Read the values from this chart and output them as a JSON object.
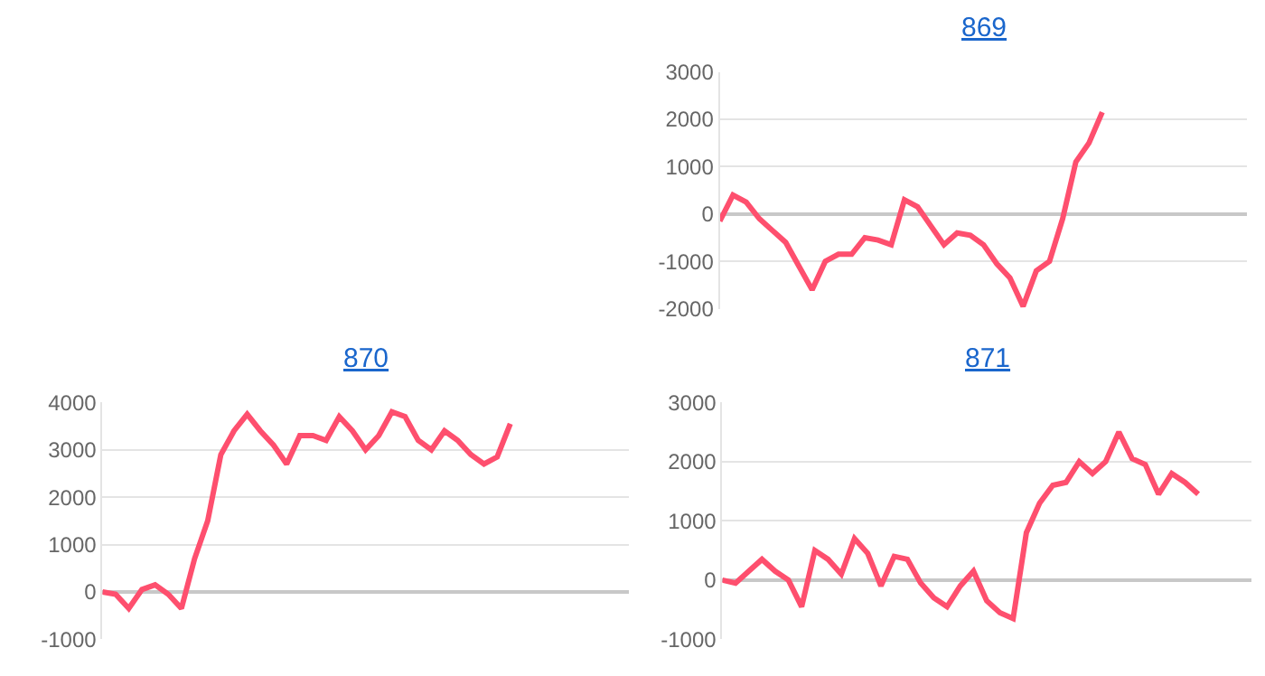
{
  "chart_data": [
    {
      "type": "line",
      "title": "869",
      "categories": [
        null,
        null,
        null,
        null,
        null,
        null,
        null,
        null,
        null,
        null,
        null,
        null,
        null,
        null,
        null,
        null,
        null,
        null,
        null,
        null,
        null,
        null,
        null,
        null,
        null,
        null,
        null,
        null,
        null,
        null,
        null,
        null,
        null,
        null,
        null,
        null,
        null,
        null,
        null,
        null,
        null
      ],
      "series": [
        {
          "color": "#fe4f6e",
          "values": [
            -150,
            400,
            250,
            -100,
            -350,
            -600,
            -1100,
            -1600,
            -1000,
            -850,
            -850,
            -500,
            -550,
            -650,
            300,
            150,
            -250,
            -650,
            -400,
            -450,
            -650,
            -1050,
            -1350,
            -1950,
            -1200,
            -1000,
            -100,
            1100,
            1500,
            2150,
            null,
            null,
            null,
            null,
            null,
            null,
            null,
            null,
            null,
            null,
            null
          ]
        }
      ],
      "ylim": [
        -2000,
        3000
      ],
      "yticks": [
        -2000,
        -1000,
        0,
        1000,
        2000,
        3000
      ],
      "grid": "y",
      "tick_labels": "y"
    },
    {
      "type": "line",
      "title": "870",
      "categories": [
        null,
        null,
        null,
        null,
        null,
        null,
        null,
        null,
        null,
        null,
        null,
        null,
        null,
        null,
        null,
        null,
        null,
        null,
        null,
        null,
        null,
        null,
        null,
        null,
        null,
        null,
        null,
        null,
        null,
        null,
        null,
        null,
        null,
        null,
        null,
        null,
        null,
        null,
        null,
        null,
        null
      ],
      "series": [
        {
          "color": "#fe4f6e",
          "values": [
            0,
            -50,
            -350,
            50,
            150,
            -50,
            -350,
            700,
            1500,
            2900,
            3400,
            3750,
            3400,
            3100,
            2700,
            3300,
            3300,
            3200,
            3700,
            3400,
            3000,
            3300,
            3800,
            3700,
            3200,
            3000,
            3400,
            3200,
            2900,
            2700,
            2850,
            3550,
            null,
            null,
            null,
            null,
            null,
            null,
            null,
            null,
            null
          ]
        }
      ],
      "ylim": [
        -1000,
        4000
      ],
      "yticks": [
        -1000,
        0,
        1000,
        2000,
        3000,
        4000
      ],
      "grid": "y",
      "tick_labels": "y"
    },
    {
      "type": "line",
      "title": "871",
      "categories": [
        null,
        null,
        null,
        null,
        null,
        null,
        null,
        null,
        null,
        null,
        null,
        null,
        null,
        null,
        null,
        null,
        null,
        null,
        null,
        null,
        null,
        null,
        null,
        null,
        null,
        null,
        null,
        null,
        null,
        null,
        null,
        null,
        null,
        null,
        null,
        null,
        null,
        null,
        null,
        null,
        null
      ],
      "series": [
        {
          "color": "#fe4f6e",
          "values": [
            0,
            -50,
            150,
            350,
            150,
            0,
            -450,
            500,
            350,
            100,
            700,
            450,
            -100,
            400,
            350,
            -50,
            -300,
            -450,
            -100,
            150,
            -350,
            -550,
            -650,
            800,
            1300,
            1600,
            1650,
            2000,
            1800,
            2000,
            2500,
            2050,
            1950,
            1450,
            1800,
            1650,
            1450,
            null,
            null,
            null,
            null
          ]
        }
      ],
      "ylim": [
        -1000,
        3000
      ],
      "yticks": [
        -1000,
        0,
        1000,
        2000,
        3000
      ],
      "grid": "y",
      "tick_labels": "y"
    }
  ]
}
